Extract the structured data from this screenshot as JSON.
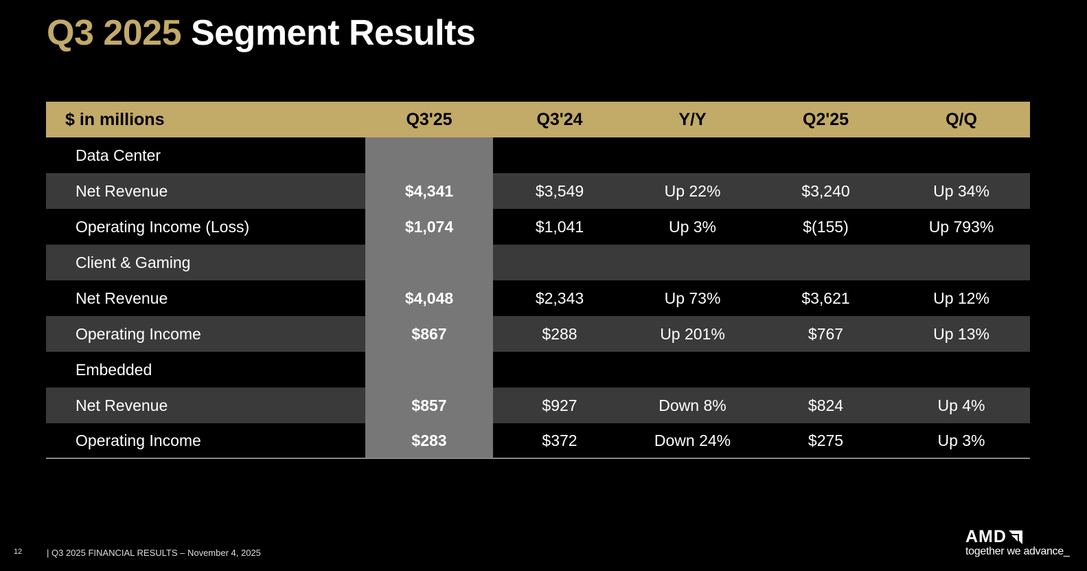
{
  "title": {
    "highlight": "Q3 2025",
    "rest": "Segment Results"
  },
  "table": {
    "headers": [
      "$ in millions",
      "Q3'25",
      "Q3'24",
      "Y/Y",
      "Q2'25",
      "Q/Q"
    ],
    "rows": [
      {
        "type": "segment",
        "cells": [
          "Data Center",
          "",
          "",
          "",
          "",
          ""
        ]
      },
      {
        "type": "stripe",
        "cells": [
          "Net Revenue",
          "$4,341",
          "$3,549",
          "Up 22%",
          "$3,240",
          "Up 34%"
        ]
      },
      {
        "type": "plain",
        "cells": [
          "Operating Income (Loss)",
          "$1,074",
          "$1,041",
          "Up 3%",
          "$(155)",
          "Up 793%"
        ]
      },
      {
        "type": "segment stripe",
        "cells": [
          "Client & Gaming",
          "",
          "",
          "",
          "",
          ""
        ]
      },
      {
        "type": "plain",
        "cells": [
          "Net Revenue",
          "$4,048",
          "$2,343",
          "Up 73%",
          "$3,621",
          "Up 12%"
        ]
      },
      {
        "type": "stripe",
        "cells": [
          "Operating Income",
          "$867",
          "$288",
          "Up 201%",
          "$767",
          "Up 13%"
        ]
      },
      {
        "type": "segment",
        "cells": [
          "Embedded",
          "",
          "",
          "",
          "",
          ""
        ]
      },
      {
        "type": "stripe",
        "cells": [
          "Net Revenue",
          "$857",
          "$927",
          "Down 8%",
          "$824",
          "Up 4%"
        ]
      },
      {
        "type": "plain last",
        "cells": [
          "Operating Income",
          "$283",
          "$372",
          "Down 24%",
          "$275",
          "Up 3%"
        ]
      }
    ]
  },
  "footer": {
    "page": "12",
    "text": "|   Q3 2025 FINANCIAL RESULTS – November 4, 2025"
  },
  "logo": {
    "brand": "AMD",
    "tagline": "together we advance_"
  },
  "colors": {
    "accent": "#c2aa68",
    "stripe": "#3a3a3a",
    "highlight_column": "#777777"
  }
}
